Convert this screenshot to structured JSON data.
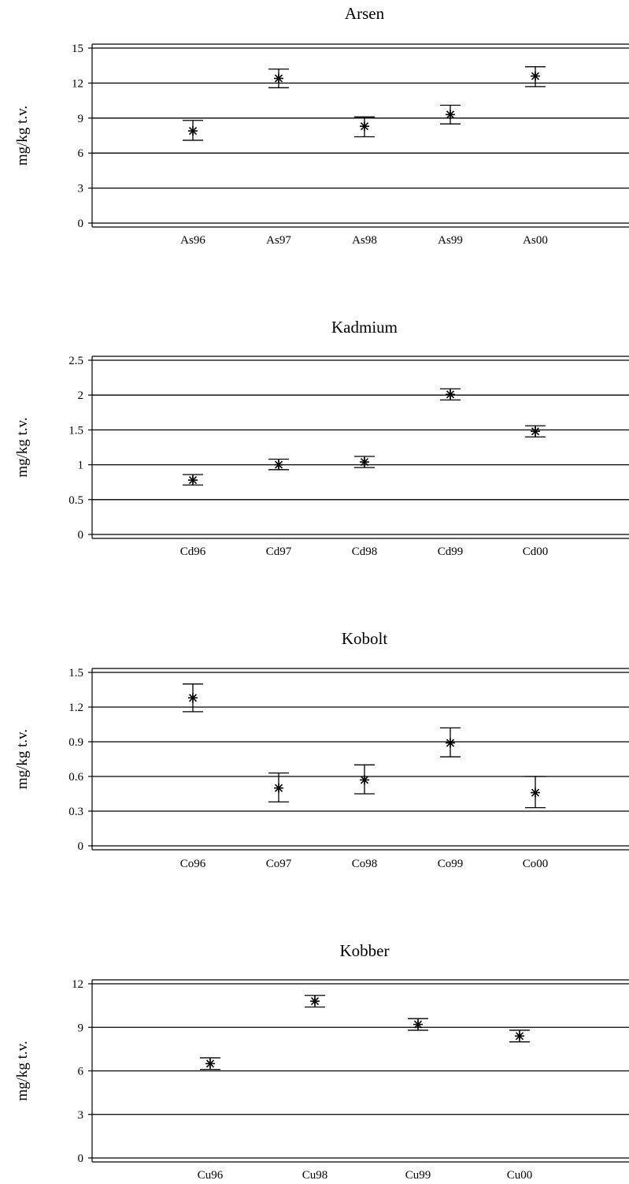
{
  "chart_data": [
    {
      "type": "scatter",
      "title": "Arsen",
      "ylabel": "mg/kg t.v.",
      "ylim": [
        0,
        15
      ],
      "yticks": [
        0,
        3,
        6,
        9,
        12,
        15
      ],
      "ytick_labels": [
        "0",
        "3",
        "6",
        "9",
        "12",
        "15"
      ],
      "grid": true,
      "categories": [
        "As96",
        "As97",
        "As98",
        "As99",
        "As00"
      ],
      "values": [
        7.9,
        12.4,
        8.3,
        9.3,
        12.6
      ],
      "err_low": [
        7.1,
        11.6,
        7.4,
        8.5,
        11.7
      ],
      "err_high": [
        8.8,
        13.2,
        9.1,
        10.1,
        13.4
      ]
    },
    {
      "type": "scatter",
      "title": "Kadmium",
      "ylabel": "mg/kg t.v.",
      "ylim": [
        0,
        2.5
      ],
      "yticks": [
        0,
        0.5,
        1,
        1.5,
        2,
        2.5
      ],
      "ytick_labels": [
        "0",
        "0.5",
        "1",
        "1.5",
        "2",
        "2.5"
      ],
      "grid": true,
      "categories": [
        "Cd96",
        "Cd97",
        "Cd98",
        "Cd99",
        "Cd00"
      ],
      "values": [
        0.78,
        1.0,
        1.04,
        2.01,
        1.48
      ],
      "err_low": [
        0.71,
        0.93,
        0.96,
        1.93,
        1.4
      ],
      "err_high": [
        0.86,
        1.08,
        1.12,
        2.09,
        1.56
      ]
    },
    {
      "type": "scatter",
      "title": "Kobolt",
      "ylabel": "mg/kg t.v.",
      "ylim": [
        0,
        1.5
      ],
      "yticks": [
        0,
        0.3,
        0.6,
        0.9,
        1.2,
        1.5
      ],
      "ytick_labels": [
        "0",
        "0.3",
        "0.6",
        "0.9",
        "1.2",
        "1.5"
      ],
      "grid": true,
      "categories": [
        "Co96",
        "Co97",
        "Co98",
        "Co99",
        "Co00"
      ],
      "values": [
        1.28,
        0.5,
        0.57,
        0.89,
        0.46
      ],
      "err_low": [
        1.16,
        0.38,
        0.45,
        0.77,
        0.33
      ],
      "err_high": [
        1.4,
        0.63,
        0.7,
        1.02,
        0.6
      ]
    },
    {
      "type": "scatter",
      "title": "Kobber",
      "ylabel": "mg/kg t.v.",
      "ylim": [
        0,
        12
      ],
      "yticks": [
        0,
        3,
        6,
        9,
        12
      ],
      "ytick_labels": [
        "0",
        "3",
        "6",
        "9",
        "12"
      ],
      "grid": true,
      "categories": [
        "Cu96",
        "Cu98",
        "Cu99",
        "Cu00"
      ],
      "values": [
        6.5,
        10.8,
        9.2,
        8.4
      ],
      "err_low": [
        6.1,
        10.4,
        8.8,
        8.0
      ],
      "err_high": [
        6.9,
        11.2,
        9.6,
        8.8
      ]
    }
  ]
}
